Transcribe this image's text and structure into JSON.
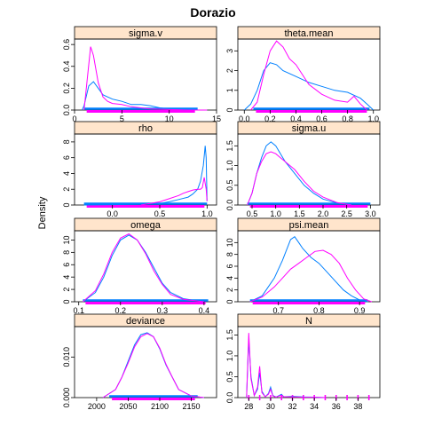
{
  "figure": {
    "title": "Dorazio",
    "ylabel": "Density"
  },
  "colors": {
    "strip": "#ffe5cc",
    "series1": "#0080ff",
    "series2": "#ff00ff"
  },
  "chart_data": [
    {
      "type": "line",
      "title": "sigma.v",
      "xlim": [
        0,
        15
      ],
      "ylim": [
        0,
        0.65
      ],
      "xticks": [
        0,
        5,
        10,
        15
      ],
      "xtick_labels": [
        "0",
        "5",
        "10",
        "15"
      ],
      "yticks": [
        0.0,
        0.2,
        0.4,
        0.6
      ],
      "ytick_labels": [
        "0.0",
        "0.2",
        "0.4",
        "0.6"
      ],
      "rug": [
        1.0,
        13.0
      ],
      "series": [
        {
          "x": [
            0.8,
            1.0,
            1.5,
            2.0,
            2.5,
            3.0,
            4.0,
            5.0,
            6.0,
            7.0,
            8.0,
            9.0,
            10.0,
            12.0,
            14.0
          ],
          "y": [
            0.0,
            0.04,
            0.22,
            0.26,
            0.2,
            0.14,
            0.1,
            0.08,
            0.05,
            0.05,
            0.04,
            0.02,
            0.01,
            0.0,
            0.0
          ]
        },
        {
          "x": [
            1.0,
            1.3,
            1.7,
            2.0,
            2.5,
            3.0,
            3.5,
            4.0,
            5.0,
            6.0,
            7.0,
            8.0,
            10.0,
            12.0,
            14.0
          ],
          "y": [
            0.0,
            0.25,
            0.58,
            0.5,
            0.25,
            0.12,
            0.08,
            0.06,
            0.05,
            0.03,
            0.02,
            0.01,
            0.005,
            0.0,
            0.0
          ]
        }
      ]
    },
    {
      "type": "line",
      "title": "theta.mean",
      "xlim": [
        -0.05,
        1.05
      ],
      "ylim": [
        0,
        3.6
      ],
      "xticks": [
        0.0,
        0.2,
        0.4,
        0.6,
        0.8,
        1.0
      ],
      "xtick_labels": [
        "0.0",
        "0.2",
        "0.4",
        "0.6",
        "0.8",
        "1.0"
      ],
      "yticks": [
        0,
        1,
        2,
        3
      ],
      "ytick_labels": [
        "0",
        "1",
        "2",
        "3"
      ],
      "rug": [
        0.07,
        0.97
      ],
      "series": [
        {
          "x": [
            0.0,
            0.05,
            0.1,
            0.15,
            0.2,
            0.25,
            0.3,
            0.4,
            0.5,
            0.6,
            0.7,
            0.8,
            0.9,
            0.95,
            1.0
          ],
          "y": [
            0.0,
            0.3,
            1.0,
            2.0,
            2.4,
            2.3,
            2.0,
            1.7,
            1.4,
            1.2,
            1.0,
            0.9,
            0.6,
            0.3,
            0.0
          ]
        },
        {
          "x": [
            0.05,
            0.1,
            0.15,
            0.2,
            0.25,
            0.3,
            0.35,
            0.4,
            0.45,
            0.5,
            0.6,
            0.7,
            0.8,
            0.85,
            0.9,
            0.95
          ],
          "y": [
            0.0,
            0.4,
            1.8,
            3.0,
            3.5,
            3.2,
            2.6,
            2.3,
            1.8,
            1.3,
            0.8,
            0.5,
            0.4,
            0.7,
            0.3,
            0.0
          ]
        }
      ]
    },
    {
      "type": "line",
      "title": "rho",
      "xlim": [
        -0.4,
        1.1
      ],
      "ylim": [
        0,
        9
      ],
      "xticks": [
        0.0,
        0.5,
        1.0
      ],
      "xtick_labels": [
        "0.0",
        "0.5",
        "1.0"
      ],
      "yticks": [
        0,
        2,
        4,
        6,
        8
      ],
      "ytick_labels": [
        "0",
        "2",
        "4",
        "6",
        "8"
      ],
      "rug": [
        -0.3,
        1.0
      ],
      "series": [
        {
          "x": [
            -0.3,
            0.0,
            0.3,
            0.5,
            0.6,
            0.7,
            0.8,
            0.85,
            0.9,
            0.93,
            0.96,
            0.98,
            0.99,
            1.0
          ],
          "y": [
            0.0,
            0.05,
            0.1,
            0.2,
            0.4,
            0.7,
            1.0,
            1.4,
            2.0,
            3.0,
            5.0,
            7.5,
            6.0,
            0.5
          ]
        },
        {
          "x": [
            0.3,
            0.5,
            0.6,
            0.7,
            0.75,
            0.8,
            0.85,
            0.9,
            0.93,
            0.95,
            0.97,
            0.99,
            1.0
          ],
          "y": [
            0.0,
            0.4,
            0.8,
            1.2,
            1.5,
            1.7,
            1.9,
            2.0,
            2.0,
            2.2,
            3.5,
            2.0,
            0.5
          ]
        }
      ]
    },
    {
      "type": "line",
      "title": "sigma.u",
      "xlim": [
        0.2,
        3.2
      ],
      "ylim": [
        0,
        1.8
      ],
      "xticks": [
        0.5,
        1.0,
        1.5,
        2.0,
        2.5,
        3.0
      ],
      "xtick_labels": [
        "0.5",
        "1.0",
        "1.5",
        "2.0",
        "2.5",
        "3.0"
      ],
      "yticks": [
        0.0,
        0.5,
        1.0,
        1.5
      ],
      "ytick_labels": [
        "0.0",
        "0.5",
        "1.0",
        "1.5"
      ],
      "rug": [
        0.4,
        3.0
      ],
      "series": [
        {
          "x": [
            0.4,
            0.5,
            0.6,
            0.7,
            0.8,
            0.9,
            1.0,
            1.1,
            1.2,
            1.4,
            1.6,
            1.8,
            2.0,
            2.3,
            2.6
          ],
          "y": [
            0.0,
            0.3,
            0.8,
            1.2,
            1.5,
            1.6,
            1.5,
            1.3,
            1.1,
            0.8,
            0.5,
            0.3,
            0.15,
            0.05,
            0.0
          ]
        },
        {
          "x": [
            0.4,
            0.5,
            0.6,
            0.7,
            0.8,
            0.9,
            1.0,
            1.1,
            1.2,
            1.4,
            1.6,
            1.8,
            2.0,
            2.3,
            2.6
          ],
          "y": [
            0.0,
            0.3,
            0.8,
            1.1,
            1.3,
            1.35,
            1.3,
            1.2,
            1.1,
            0.9,
            0.6,
            0.35,
            0.2,
            0.06,
            0.0
          ]
        }
      ]
    },
    {
      "type": "line",
      "title": "omega",
      "xlim": [
        0.09,
        0.43
      ],
      "ylim": [
        0,
        11.5
      ],
      "xticks": [
        0.1,
        0.2,
        0.3,
        0.4
      ],
      "xtick_labels": [
        "0.1",
        "0.2",
        "0.3",
        "0.4"
      ],
      "yticks": [
        0,
        2,
        4,
        6,
        8,
        10
      ],
      "ytick_labels": [
        "0",
        "2",
        "4",
        "6",
        "8",
        "10"
      ],
      "rug": [
        0.11,
        0.41
      ],
      "series": [
        {
          "x": [
            0.11,
            0.14,
            0.16,
            0.18,
            0.2,
            0.22,
            0.24,
            0.26,
            0.28,
            0.3,
            0.32,
            0.35,
            0.4
          ],
          "y": [
            0.0,
            1.5,
            4.0,
            7.5,
            10.0,
            10.8,
            10.0,
            8.0,
            5.5,
            3.0,
            1.5,
            0.5,
            0.0
          ]
        },
        {
          "x": [
            0.11,
            0.14,
            0.16,
            0.18,
            0.2,
            0.22,
            0.24,
            0.26,
            0.28,
            0.3,
            0.32,
            0.35,
            0.4
          ],
          "y": [
            0.0,
            1.8,
            4.5,
            8.0,
            10.3,
            11.0,
            10.0,
            7.8,
            5.0,
            2.8,
            1.2,
            0.4,
            0.0
          ]
        }
      ]
    },
    {
      "type": "line",
      "title": "psi.mean",
      "xlim": [
        0.6,
        0.95
      ],
      "ylim": [
        0,
        12
      ],
      "xticks": [
        0.7,
        0.8,
        0.9
      ],
      "xtick_labels": [
        "0.7",
        "0.8",
        "0.9"
      ],
      "yticks": [
        0,
        2,
        4,
        6,
        8,
        10
      ],
      "ytick_labels": [
        "0",
        "2",
        "4",
        "6",
        "8",
        "10"
      ],
      "rug": [
        0.63,
        0.92
      ],
      "series": [
        {
          "x": [
            0.63,
            0.66,
            0.69,
            0.71,
            0.73,
            0.74,
            0.75,
            0.76,
            0.78,
            0.8,
            0.82,
            0.84,
            0.86,
            0.88,
            0.9,
            0.92
          ],
          "y": [
            0.0,
            1.0,
            4.0,
            7.0,
            10.5,
            11.0,
            10.0,
            9.0,
            7.5,
            6.5,
            5.0,
            3.5,
            2.0,
            1.0,
            0.3,
            0.0
          ]
        },
        {
          "x": [
            0.63,
            0.66,
            0.69,
            0.71,
            0.73,
            0.75,
            0.77,
            0.79,
            0.81,
            0.83,
            0.85,
            0.87,
            0.89,
            0.91,
            0.93
          ],
          "y": [
            0.0,
            0.8,
            2.5,
            4.0,
            5.5,
            6.5,
            7.5,
            8.5,
            8.7,
            8.0,
            6.5,
            4.0,
            2.0,
            0.5,
            0.0
          ]
        }
      ]
    },
    {
      "type": "line",
      "title": "deviance",
      "xlim": [
        1965,
        2190
      ],
      "ylim": [
        0,
        0.0175
      ],
      "xticks": [
        2000,
        2050,
        2100,
        2150
      ],
      "xtick_labels": [
        "2000",
        "2050",
        "2100",
        "2150"
      ],
      "yticks": [
        0.0,
        0.01
      ],
      "ytick_labels": [
        "0.000",
        "0.010"
      ],
      "rug": [
        2020,
        2160
      ],
      "series": [
        {
          "x": [
            2010,
            2030,
            2040,
            2050,
            2060,
            2070,
            2080,
            2090,
            2100,
            2110,
            2120,
            2130,
            2150,
            2170
          ],
          "y": [
            0.0,
            0.002,
            0.005,
            0.009,
            0.013,
            0.0155,
            0.016,
            0.015,
            0.012,
            0.008,
            0.005,
            0.002,
            0.0004,
            0.0
          ]
        },
        {
          "x": [
            2010,
            2030,
            2040,
            2050,
            2060,
            2070,
            2080,
            2090,
            2100,
            2110,
            2120,
            2130,
            2150,
            2170
          ],
          "y": [
            0.0,
            0.002,
            0.005,
            0.0085,
            0.0125,
            0.015,
            0.0158,
            0.015,
            0.0122,
            0.0082,
            0.005,
            0.002,
            0.0004,
            0.0
          ]
        }
      ]
    },
    {
      "type": "line",
      "title": "N",
      "xlim": [
        27,
        40
      ],
      "ylim": [
        0,
        1.7
      ],
      "xticks": [
        28,
        30,
        32,
        34,
        36,
        38
      ],
      "xtick_labels": [
        "28",
        "30",
        "32",
        "34",
        "36",
        "38"
      ],
      "yticks": [
        0.0,
        0.5,
        1.0,
        1.5
      ],
      "ytick_labels": [
        "0.0",
        "0.5",
        "1.0",
        "1.5"
      ],
      "rug": [
        28,
        39
      ],
      "rug_ticks": [
        28,
        29,
        30,
        31,
        32,
        33,
        34,
        35,
        36,
        37,
        38,
        39
      ],
      "series": [
        {
          "x": [
            27.8,
            28.0,
            28.2,
            28.5,
            28.8,
            29.0,
            29.2,
            29.5,
            29.8,
            30.0,
            30.2,
            30.5,
            31.0,
            31.2,
            32.0,
            33.0,
            34.0,
            35.0
          ],
          "y": [
            0.0,
            1.4,
            0.5,
            0.05,
            0.2,
            0.6,
            0.15,
            0.02,
            0.1,
            0.25,
            0.05,
            0.01,
            0.08,
            0.02,
            0.03,
            0.015,
            0.01,
            0.0
          ]
        },
        {
          "x": [
            27.8,
            28.0,
            28.2,
            28.5,
            28.8,
            29.0,
            29.2,
            29.5,
            29.8,
            30.0,
            30.2,
            30.5,
            31.0,
            31.2,
            32.0,
            33.0,
            34.0,
            35.0
          ],
          "y": [
            0.0,
            1.55,
            0.45,
            0.05,
            0.25,
            0.75,
            0.12,
            0.02,
            0.08,
            0.2,
            0.04,
            0.01,
            0.06,
            0.02,
            0.02,
            0.01,
            0.008,
            0.0
          ]
        }
      ]
    }
  ]
}
